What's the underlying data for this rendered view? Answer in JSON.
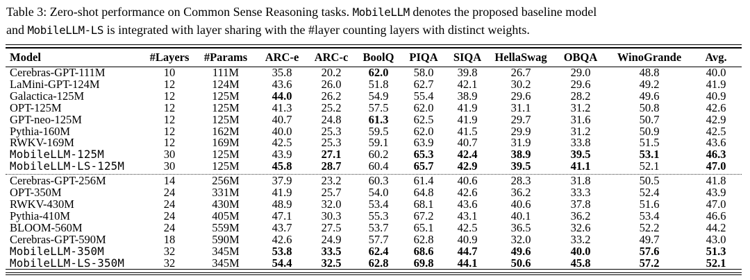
{
  "caption": {
    "lines": [
      [
        {
          "text": "Table 3: Zero-shot performance on Common Sense Reasoning tasks. ",
          "mono": false
        },
        {
          "text": "MobileLLM",
          "mono": true
        },
        {
          "text": " denotes the proposed baseline model",
          "mono": false
        }
      ],
      [
        {
          "text": "and ",
          "mono": false
        },
        {
          "text": "MobileLLM-LS",
          "mono": true
        },
        {
          "text": " is integrated with layer sharing with the #layer counting layers with distinct weights.",
          "mono": false
        }
      ]
    ]
  },
  "table": {
    "columns": [
      "Model",
      "#Layers",
      "#Params",
      "ARC-e",
      "ARC-c",
      "BoolQ",
      "PIQA",
      "SIQA",
      "HellaSwag",
      "OBQA",
      "WinoGrande",
      "Avg."
    ],
    "groups": [
      {
        "rows": [
          {
            "model": "Cerebras-GPT-111M",
            "mono": false,
            "values": [
              "10",
              "111M",
              "35.8",
              "20.2",
              "62.0",
              "58.0",
              "39.8",
              "26.7",
              "29.0",
              "48.8",
              "40.0"
            ],
            "bold": [
              4
            ]
          },
          {
            "model": "LaMini-GPT-124M",
            "mono": false,
            "values": [
              "12",
              "124M",
              "43.6",
              "26.0",
              "51.8",
              "62.7",
              "42.1",
              "30.2",
              "29.6",
              "49.2",
              "41.9"
            ],
            "bold": []
          },
          {
            "model": "Galactica-125M",
            "mono": false,
            "values": [
              "12",
              "125M",
              "44.0",
              "26.2",
              "54.9",
              "55.4",
              "38.9",
              "29.6",
              "28.2",
              "49.6",
              "40.9"
            ],
            "bold": [
              2
            ]
          },
          {
            "model": "OPT-125M",
            "mono": false,
            "values": [
              "12",
              "125M",
              "41.3",
              "25.2",
              "57.5",
              "62.0",
              "41.9",
              "31.1",
              "31.2",
              "50.8",
              "42.6"
            ],
            "bold": []
          },
          {
            "model": "GPT-neo-125M",
            "mono": false,
            "values": [
              "12",
              "125M",
              "40.7",
              "24.8",
              "61.3",
              "62.5",
              "41.9",
              "29.7",
              "31.6",
              "50.7",
              "42.9"
            ],
            "bold": [
              4
            ]
          },
          {
            "model": "Pythia-160M",
            "mono": false,
            "values": [
              "12",
              "162M",
              "40.0",
              "25.3",
              "59.5",
              "62.0",
              "41.5",
              "29.9",
              "31.2",
              "50.9",
              "42.5"
            ],
            "bold": []
          },
          {
            "model": "RWKV-169M",
            "mono": false,
            "values": [
              "12",
              "169M",
              "42.5",
              "25.3",
              "59.1",
              "63.9",
              "40.7",
              "31.9",
              "33.8",
              "51.5",
              "43.6"
            ],
            "bold": []
          },
          {
            "model": "MobileLLM-125M",
            "mono": true,
            "values": [
              "30",
              "125M",
              "43.9",
              "27.1",
              "60.2",
              "65.3",
              "42.4",
              "38.9",
              "39.5",
              "53.1",
              "46.3"
            ],
            "bold": [
              3,
              5,
              6,
              7,
              8,
              9,
              10
            ]
          },
          {
            "model": "MobileLLM-LS-125M",
            "mono": true,
            "values": [
              "30",
              "125M",
              "45.8",
              "28.7",
              "60.4",
              "65.7",
              "42.9",
              "39.5",
              "41.1",
              "52.1",
              "47.0"
            ],
            "bold": [
              2,
              3,
              5,
              6,
              7,
              8,
              10
            ]
          }
        ]
      },
      {
        "rows": [
          {
            "model": "Cerebras-GPT-256M",
            "mono": false,
            "values": [
              "14",
              "256M",
              "37.9",
              "23.2",
              "60.3",
              "61.4",
              "40.6",
              "28.3",
              "31.8",
              "50.5",
              "41.8"
            ],
            "bold": []
          },
          {
            "model": "OPT-350M",
            "mono": false,
            "values": [
              "24",
              "331M",
              "41.9",
              "25.7",
              "54.0",
              "64.8",
              "42.6",
              "36.2",
              "33.3",
              "52.4",
              "43.9"
            ],
            "bold": []
          },
          {
            "model": "RWKV-430M",
            "mono": false,
            "values": [
              "24",
              "430M",
              "48.9",
              "32.0",
              "53.4",
              "68.1",
              "43.6",
              "40.6",
              "37.8",
              "51.6",
              "47.0"
            ],
            "bold": []
          },
          {
            "model": "Pythia-410M",
            "mono": false,
            "values": [
              "24",
              "405M",
              "47.1",
              "30.3",
              "55.3",
              "67.2",
              "43.1",
              "40.1",
              "36.2",
              "53.4",
              "46.6"
            ],
            "bold": []
          },
          {
            "model": "BLOOM-560M",
            "mono": false,
            "values": [
              "24",
              "559M",
              "43.7",
              "27.5",
              "53.7",
              "65.1",
              "42.5",
              "36.5",
              "32.6",
              "52.2",
              "44.2"
            ],
            "bold": []
          },
          {
            "model": "Cerebras-GPT-590M",
            "mono": false,
            "values": [
              "18",
              "590M",
              "42.6",
              "24.9",
              "57.7",
              "62.8",
              "40.9",
              "32.0",
              "33.2",
              "49.7",
              "43.0"
            ],
            "bold": []
          },
          {
            "model": "MobileLLM-350M",
            "mono": true,
            "values": [
              "32",
              "345M",
              "53.8",
              "33.5",
              "62.4",
              "68.6",
              "44.7",
              "49.6",
              "40.0",
              "57.6",
              "51.3"
            ],
            "bold": [
              2,
              3,
              4,
              5,
              6,
              7,
              8,
              9,
              10
            ]
          },
          {
            "model": "MobileLLM-LS-350M",
            "mono": true,
            "values": [
              "32",
              "345M",
              "54.4",
              "32.5",
              "62.8",
              "69.8",
              "44.1",
              "50.6",
              "45.8",
              "57.2",
              "52.1"
            ],
            "bold": [
              2,
              3,
              4,
              5,
              6,
              7,
              8,
              9,
              10
            ]
          }
        ]
      }
    ]
  }
}
